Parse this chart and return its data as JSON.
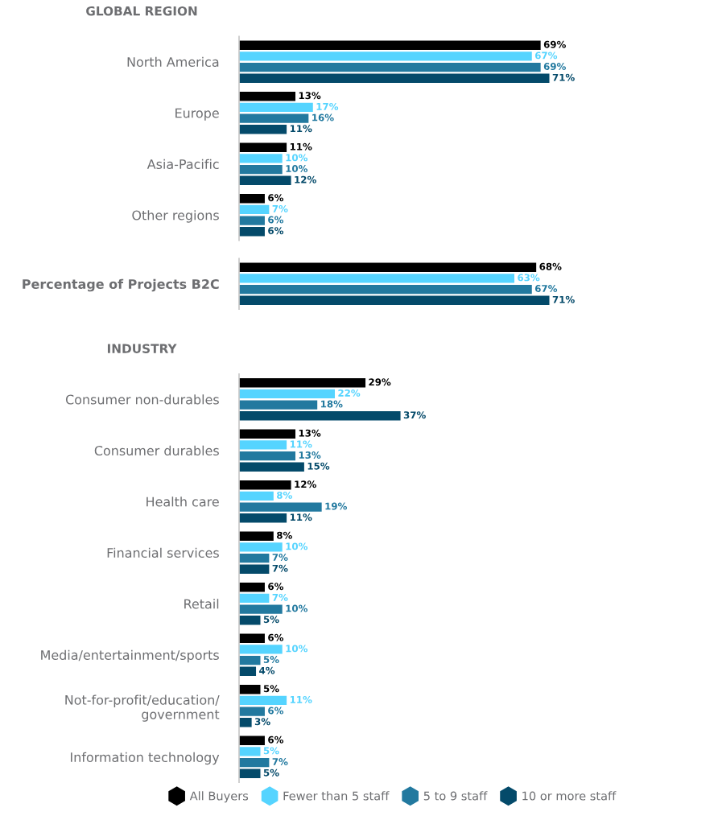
{
  "chart_data": [
    {
      "type": "bar",
      "orientation": "horizontal",
      "title": "GLOBAL REGION",
      "categories": [
        "North America",
        "Europe",
        "Asia-Pacific",
        "Other regions"
      ],
      "tick_labels": "y",
      "series": [
        {
          "color": "#000000",
          "values": [
            69,
            13,
            11,
            6
          ],
          "value_labels": [
            "69%",
            "13%",
            "11%",
            "6%"
          ]
        },
        {
          "color": "#55d4ff",
          "values": [
            67,
            17,
            10,
            7
          ],
          "value_labels": [
            "67%",
            "17%",
            "10%",
            "7%"
          ]
        },
        {
          "color": "#22799f",
          "values": [
            69,
            16,
            10,
            6
          ],
          "value_labels": [
            "69%",
            "16%",
            "10%",
            "6%"
          ]
        },
        {
          "color": "#044a6a",
          "values": [
            71,
            11,
            12,
            6
          ],
          "value_labels": [
            "71%",
            "11%",
            "12%",
            "6%"
          ]
        }
      ]
    },
    {
      "type": "bar",
      "orientation": "horizontal",
      "categories": [
        "Percentage of Projects B2C"
      ],
      "tick_labels": "y",
      "series": [
        {
          "color": "#000000",
          "values": [
            68
          ],
          "value_labels": [
            "68%"
          ]
        },
        {
          "color": "#55d4ff",
          "values": [
            63
          ],
          "value_labels": [
            "63%"
          ]
        },
        {
          "color": "#22799f",
          "values": [
            67
          ],
          "value_labels": [
            "67%"
          ]
        },
        {
          "color": "#044a6a",
          "values": [
            71
          ],
          "value_labels": [
            "71%"
          ]
        }
      ]
    },
    {
      "type": "bar",
      "orientation": "horizontal",
      "title": "INDUSTRY",
      "categories": [
        "Consumer non-durables",
        "Consumer durables",
        "Health care",
        "Financial services",
        "Retail",
        "Media/entertainment/sports",
        "Not-for-profit/education/\ngovernment",
        "Information technology"
      ],
      "tick_labels": "y",
      "legend": "bottom",
      "series": [
        {
          "name": "All Buyers",
          "color": "#000000",
          "values": [
            29,
            13,
            12,
            8,
            6,
            6,
            5,
            6
          ],
          "value_labels": [
            "29%",
            "13%",
            "12%",
            "8%",
            "6%",
            "6%",
            "5%",
            "6%"
          ]
        },
        {
          "name": "Fewer than 5 staff",
          "color": "#55d4ff",
          "values": [
            22,
            11,
            8,
            10,
            7,
            10,
            11,
            5
          ],
          "value_labels": [
            "22%",
            "11%",
            "8%",
            "10%",
            "7%",
            "10%",
            "11%",
            "5%"
          ]
        },
        {
          "name": "5 to 9 staff",
          "color": "#22799f",
          "values": [
            18,
            13,
            19,
            7,
            10,
            5,
            6,
            7
          ],
          "value_labels": [
            "18%",
            "13%",
            "19%",
            "7%",
            "10%",
            "5%",
            "6%",
            "7%"
          ]
        },
        {
          "name": "10 or more staff",
          "color": "#044a6a",
          "values": [
            37,
            15,
            11,
            7,
            5,
            4,
            3,
            5
          ],
          "value_labels": [
            "37%",
            "15%",
            "11%",
            "7%",
            "5%",
            "4%",
            "3%",
            "5%"
          ]
        }
      ]
    }
  ]
}
